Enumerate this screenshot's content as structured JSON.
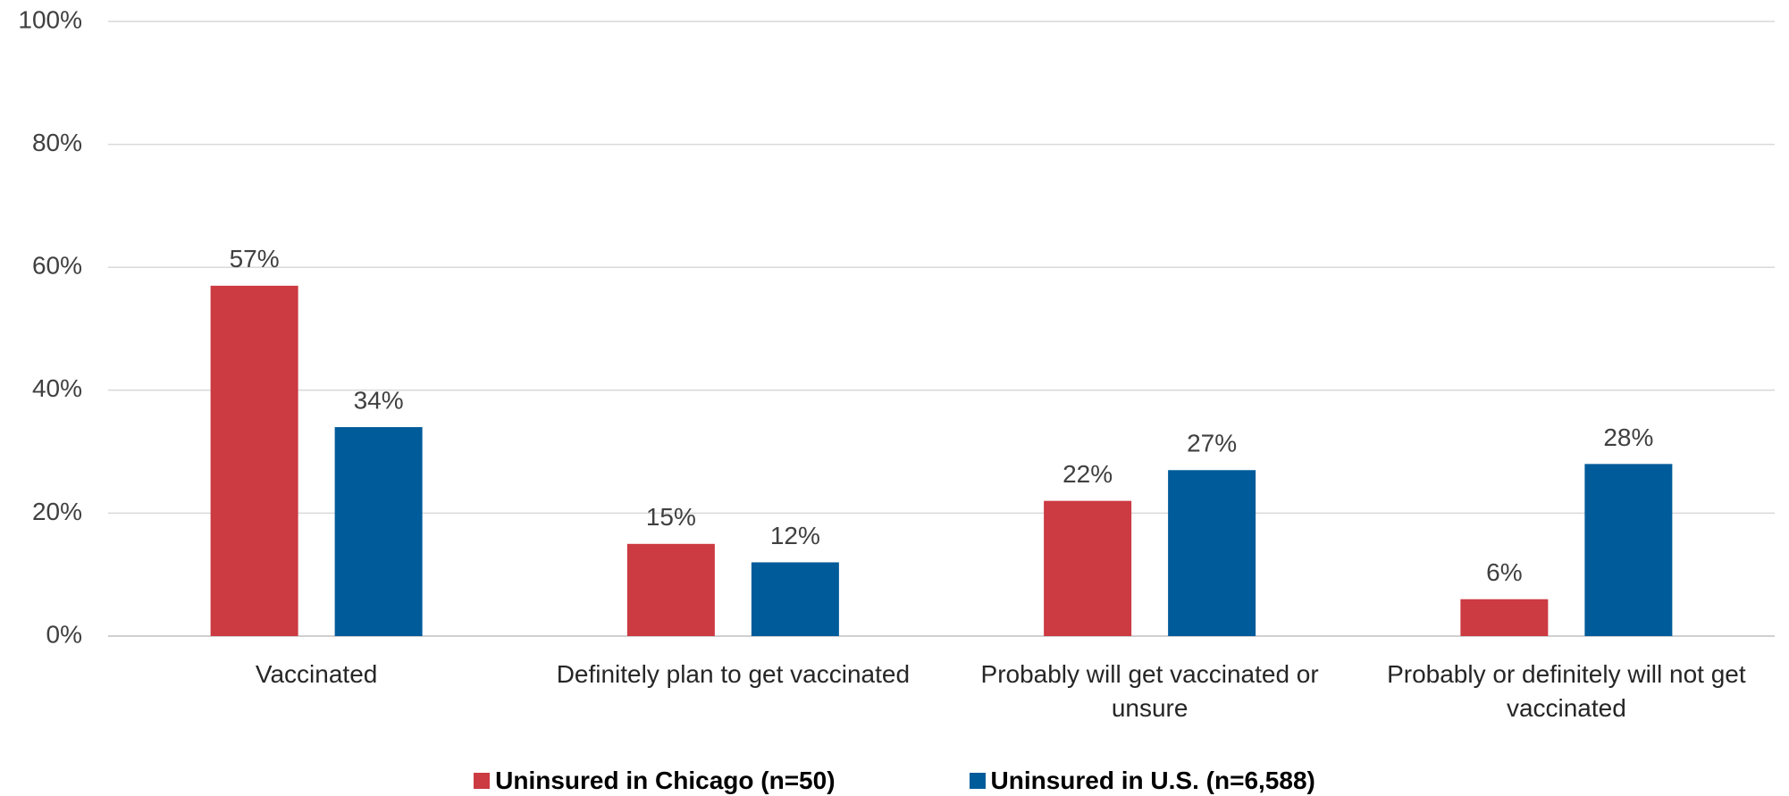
{
  "chart_data": {
    "type": "bar",
    "categories": [
      "Vaccinated",
      "Definitely plan to get vaccinated",
      "Probably will get vaccinated or unsure",
      "Probably or definitely will not get vaccinated"
    ],
    "series": [
      {
        "name": "Uninsured in Chicago (n=50)",
        "color": "#cc3a42",
        "values": [
          57,
          15,
          22,
          6
        ],
        "value_labels": [
          "57%",
          "15%",
          "22%",
          "6%"
        ]
      },
      {
        "name": "Uninsured in U.S. (n=6,588)",
        "color": "#005b9a",
        "values": [
          34,
          12,
          27,
          28
        ],
        "value_labels": [
          "34%",
          "12%",
          "27%",
          "28%"
        ]
      }
    ],
    "ylim": [
      0,
      100
    ],
    "yticks": [
      {
        "value": 0,
        "label": "0%"
      },
      {
        "value": 20,
        "label": "20%"
      },
      {
        "value": 40,
        "label": "40%"
      },
      {
        "value": 60,
        "label": "60%"
      },
      {
        "value": 80,
        "label": "80%"
      },
      {
        "value": 100,
        "label": "100%"
      }
    ],
    "grid": true,
    "legend": "bottom"
  }
}
